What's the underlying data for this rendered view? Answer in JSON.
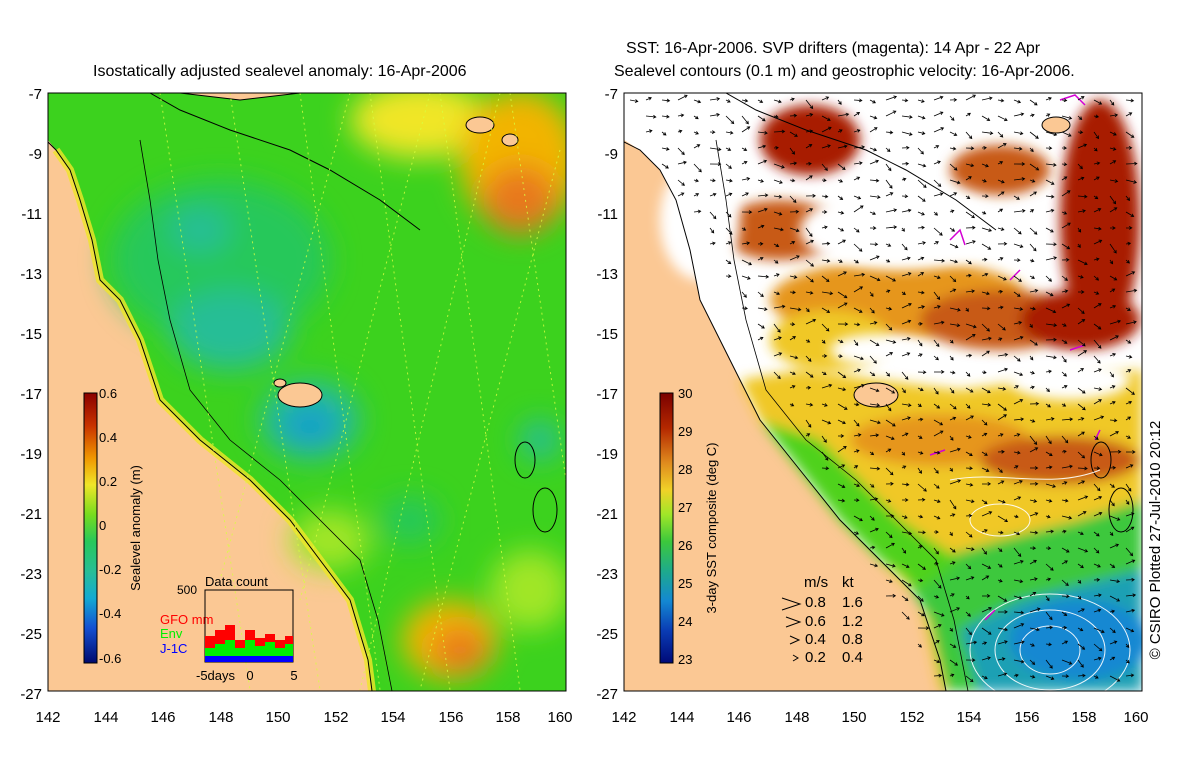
{
  "left_panel": {
    "title": "Isostatically adjusted sealevel anomaly: 16-Apr-2006",
    "y_ticks": [
      "-7",
      "-9",
      "-11",
      "-13",
      "-15",
      "-17",
      "-19",
      "-21",
      "-23",
      "-25",
      "-27"
    ],
    "x_ticks": [
      "142",
      "144",
      "146",
      "148",
      "150",
      "152",
      "154",
      "156",
      "158",
      "160"
    ],
    "colorbar": {
      "label": "Sealevel anomaly (m)",
      "ticks": [
        "0.6",
        "0.4",
        "0.2",
        "0",
        "-0.2",
        "-0.4",
        "-0.6"
      ],
      "colors": [
        "#8a0000",
        "#c83200",
        "#e8781e",
        "#f2b400",
        "#f0e628",
        "#a0e628",
        "#3cd21e",
        "#28c85a",
        "#28be96",
        "#14a0c8",
        "#1464dc",
        "#0a28a0",
        "#000a6e"
      ]
    },
    "data_count": {
      "title": "Data count",
      "max_label": "500",
      "x_ticks": [
        "-5days",
        "0",
        "5"
      ],
      "legend": [
        {
          "name": "GFO mm",
          "color": "#ff0000"
        },
        {
          "name": "Env",
          "color": "#00ee00"
        },
        {
          "name": "J-1C",
          "color": "#0000ff"
        }
      ]
    }
  },
  "right_panel": {
    "title_line1": "SST: 16-Apr-2006. SVP drifters (magenta): 14 Apr - 22 Apr",
    "title_line2": "Sealevel contours (0.1 m) and geostrophic velocity: 16-Apr-2006.",
    "y_ticks": [
      "-7",
      "-9",
      "-11",
      "-13",
      "-15",
      "-17",
      "-19",
      "-21",
      "-23",
      "-25",
      "-27"
    ],
    "x_ticks": [
      "142",
      "144",
      "146",
      "148",
      "150",
      "152",
      "154",
      "156",
      "158",
      "160"
    ],
    "colorbar": {
      "label": "3-day SST composite (deg C)",
      "ticks": [
        "30",
        "29",
        "28",
        "27",
        "26",
        "25",
        "24",
        "23"
      ],
      "colors": [
        "#7a0000",
        "#a81e00",
        "#c85a14",
        "#e6961e",
        "#f0c828",
        "#c8e628",
        "#50d21e",
        "#28be64",
        "#1ea0b4",
        "#1464dc",
        "#0a32b4",
        "#000a78"
      ]
    },
    "velocity_legend": {
      "header_ms": "m/s",
      "header_kt": "kt",
      "rows": [
        {
          "ms": "0.8",
          "kt": "1.6"
        },
        {
          "ms": "0.6",
          "kt": "1.2"
        },
        {
          "ms": "0.4",
          "kt": "0.8"
        },
        {
          "ms": "0.2",
          "kt": "0.4"
        }
      ]
    }
  },
  "credit": "© CSIRO Plotted 27-Jul-2010 20:12",
  "colors": {
    "land": "#fbc894",
    "coast": "#000000",
    "drifter": "#d400d4"
  }
}
